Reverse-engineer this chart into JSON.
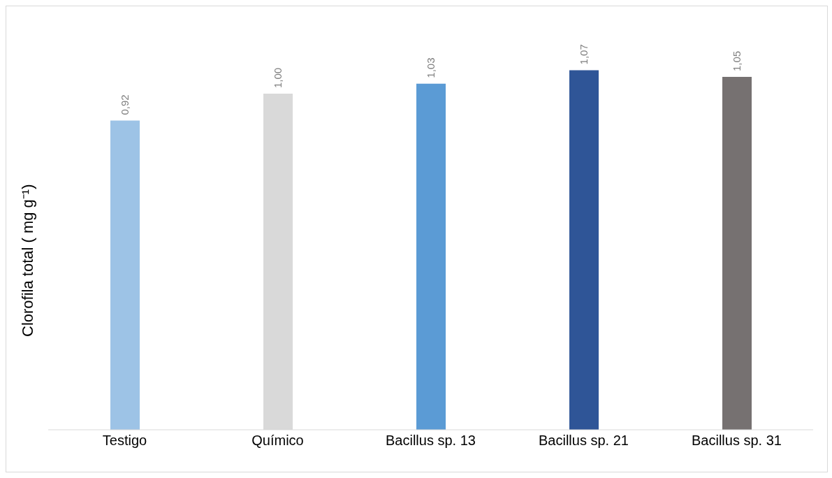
{
  "chart_data": {
    "type": "bar",
    "ylabel": "Clorofila total ( mg g⁻¹)",
    "categories": [
      "Testigo",
      "Químico",
      "Bacillus sp. 13",
      "Bacillus sp. 21",
      "Bacillus sp. 31"
    ],
    "values": [
      0.92,
      1.0,
      1.03,
      1.07,
      1.05
    ],
    "value_labels": [
      "0,92",
      "1,00",
      "1,03",
      "1,07",
      "1,05"
    ],
    "colors": [
      "#9dc3e6",
      "#d9d9d9",
      "#5b9bd5",
      "#2f5597",
      "#767171"
    ],
    "grid": false
  }
}
